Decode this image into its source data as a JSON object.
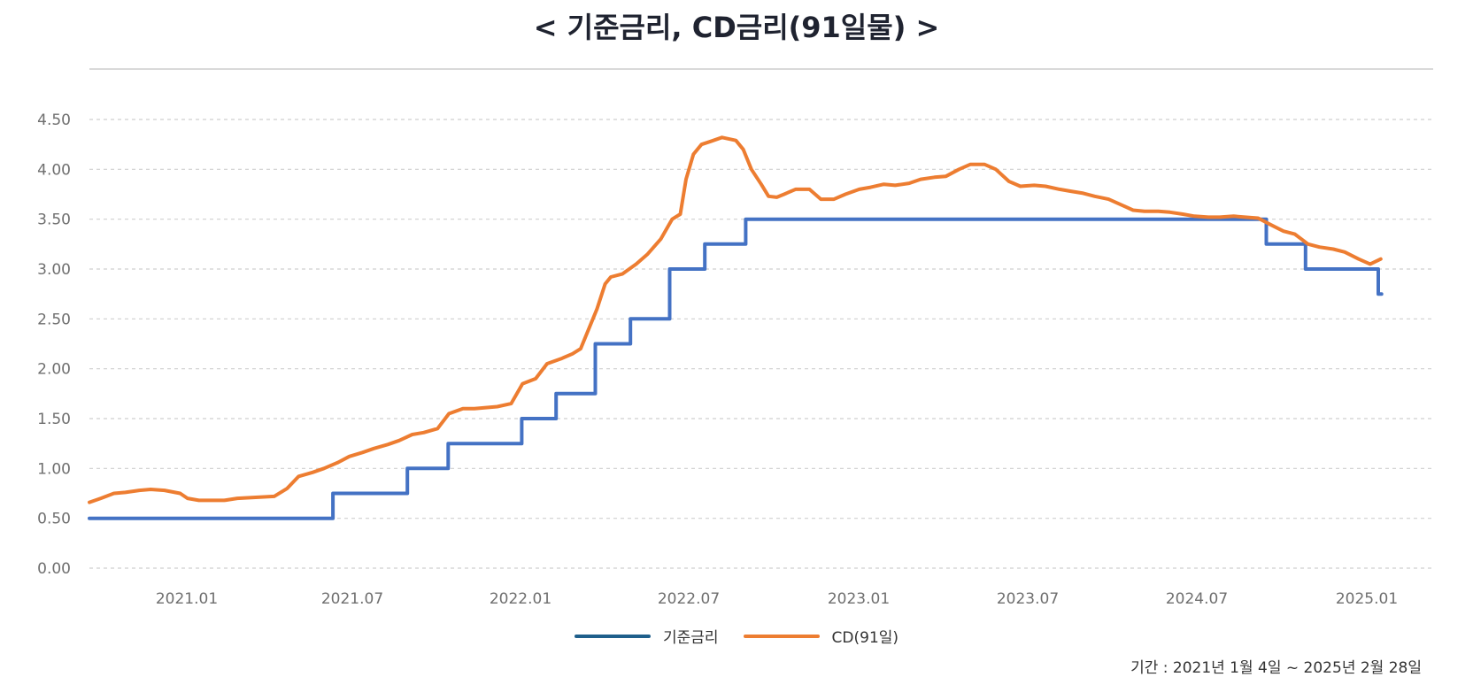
{
  "chart_data": {
    "type": "line",
    "title": "< 기준금리, CD금리(91일물) >",
    "x_ticks": [
      "2021.01",
      "2021.07",
      "2022.01",
      "2022.07",
      "2023.01",
      "2023.07",
      "2024.07",
      "2025.01"
    ],
    "y_ticks": [
      "0.00",
      "0.50",
      "1.00",
      "1.50",
      "2.00",
      "2.50",
      "3.00",
      "3.50",
      "4.00",
      "4.50"
    ],
    "ylim": [
      0,
      4.5
    ],
    "grid": "horizontal-dashed",
    "legend_position": "bottom-center",
    "footnote": "기간 : 2021년 1월 4일 ~ 2025년 2월 28일",
    "series": [
      {
        "name": "기준금리",
        "color": "#4472c4",
        "step": true,
        "points": [
          [
            "2020-11-01",
            0.5
          ],
          [
            "2021-08-26",
            0.75
          ],
          [
            "2021-11-25",
            1.0
          ],
          [
            "2022-01-14",
            1.25
          ],
          [
            "2022-04-14",
            1.5
          ],
          [
            "2022-05-26",
            1.75
          ],
          [
            "2022-07-13",
            2.25
          ],
          [
            "2022-08-25",
            2.5
          ],
          [
            "2022-10-12",
            3.0
          ],
          [
            "2022-11-24",
            3.25
          ],
          [
            "2023-01-13",
            3.5
          ],
          [
            "2024-10-11",
            3.25
          ],
          [
            "2024-11-28",
            3.0
          ],
          [
            "2025-02-25",
            2.75
          ]
        ]
      },
      {
        "name": "CD(91일)",
        "color": "#ed7d31",
        "points": [
          [
            "2020-11-01",
            0.66
          ],
          [
            "2020-11-15",
            0.7
          ],
          [
            "2020-12-01",
            0.75
          ],
          [
            "2020-12-15",
            0.76
          ],
          [
            "2021-01-01",
            0.78
          ],
          [
            "2021-01-15",
            0.79
          ],
          [
            "2021-02-01",
            0.78
          ],
          [
            "2021-02-20",
            0.75
          ],
          [
            "2021-03-01",
            0.7
          ],
          [
            "2021-03-15",
            0.68
          ],
          [
            "2021-04-15",
            0.68
          ],
          [
            "2021-05-01",
            0.7
          ],
          [
            "2021-06-15",
            0.72
          ],
          [
            "2021-07-01",
            0.8
          ],
          [
            "2021-07-15",
            0.92
          ],
          [
            "2021-08-01",
            0.96
          ],
          [
            "2021-08-15",
            1.0
          ],
          [
            "2021-09-01",
            1.06
          ],
          [
            "2021-09-15",
            1.12
          ],
          [
            "2021-10-01",
            1.16
          ],
          [
            "2021-10-15",
            1.2
          ],
          [
            "2021-11-01",
            1.24
          ],
          [
            "2021-11-15",
            1.28
          ],
          [
            "2021-12-01",
            1.34
          ],
          [
            "2021-12-15",
            1.36
          ],
          [
            "2022-01-01",
            1.4
          ],
          [
            "2022-01-15",
            1.55
          ],
          [
            "2022-02-01",
            1.6
          ],
          [
            "2022-02-15",
            1.6
          ],
          [
            "2022-03-15",
            1.62
          ],
          [
            "2022-04-01",
            1.65
          ],
          [
            "2022-04-15",
            1.85
          ],
          [
            "2022-05-01",
            1.9
          ],
          [
            "2022-05-15",
            2.05
          ],
          [
            "2022-06-01",
            2.1
          ],
          [
            "2022-06-15",
            2.15
          ],
          [
            "2022-06-25",
            2.2
          ],
          [
            "2022-07-15",
            2.6
          ],
          [
            "2022-07-25",
            2.85
          ],
          [
            "2022-08-01",
            2.92
          ],
          [
            "2022-08-15",
            2.95
          ],
          [
            "2022-09-01",
            3.05
          ],
          [
            "2022-09-15",
            3.15
          ],
          [
            "2022-10-01",
            3.3
          ],
          [
            "2022-10-15",
            3.5
          ],
          [
            "2022-10-25",
            3.55
          ],
          [
            "2022-11-01",
            3.9
          ],
          [
            "2022-11-10",
            4.15
          ],
          [
            "2022-11-20",
            4.25
          ],
          [
            "2022-12-01",
            4.28
          ],
          [
            "2022-12-15",
            4.32
          ],
          [
            "2023-01-01",
            4.29
          ],
          [
            "2023-01-05",
            4.25
          ],
          [
            "2023-01-10",
            4.2
          ],
          [
            "2023-01-20",
            4.0
          ],
          [
            "2023-02-01",
            3.85
          ],
          [
            "2023-02-10",
            3.73
          ],
          [
            "2023-02-20",
            3.72
          ],
          [
            "2023-03-01",
            3.75
          ],
          [
            "2023-03-15",
            3.8
          ],
          [
            "2023-04-01",
            3.8
          ],
          [
            "2023-04-15",
            3.7
          ],
          [
            "2023-05-01",
            3.7
          ],
          [
            "2023-05-15",
            3.75
          ],
          [
            "2023-06-01",
            3.8
          ],
          [
            "2023-06-15",
            3.82
          ],
          [
            "2023-07-01",
            3.85
          ],
          [
            "2023-07-15",
            3.84
          ],
          [
            "2023-08-01",
            3.86
          ],
          [
            "2023-08-15",
            3.9
          ],
          [
            "2023-09-01",
            3.92
          ],
          [
            "2023-09-15",
            3.93
          ],
          [
            "2023-10-01",
            4.0
          ],
          [
            "2023-10-15",
            4.05
          ],
          [
            "2023-11-01",
            4.05
          ],
          [
            "2023-11-15",
            4.0
          ],
          [
            "2023-12-01",
            3.88
          ],
          [
            "2023-12-15",
            3.83
          ],
          [
            "2024-01-01",
            3.84
          ],
          [
            "2024-01-15",
            3.83
          ],
          [
            "2024-02-01",
            3.8
          ],
          [
            "2024-02-15",
            3.78
          ],
          [
            "2024-03-01",
            3.76
          ],
          [
            "2024-03-15",
            3.73
          ],
          [
            "2024-04-01",
            3.7
          ],
          [
            "2024-04-15",
            3.65
          ],
          [
            "2024-05-01",
            3.59
          ],
          [
            "2024-05-15",
            3.58
          ],
          [
            "2024-06-01",
            3.58
          ],
          [
            "2024-06-15",
            3.57
          ],
          [
            "2024-07-01",
            3.55
          ],
          [
            "2024-07-15",
            3.53
          ],
          [
            "2024-08-01",
            3.52
          ],
          [
            "2024-08-15",
            3.52
          ],
          [
            "2024-09-01",
            3.53
          ],
          [
            "2024-09-15",
            3.52
          ],
          [
            "2024-10-01",
            3.51
          ],
          [
            "2024-10-15",
            3.45
          ],
          [
            "2024-11-01",
            3.38
          ],
          [
            "2024-11-15",
            3.35
          ],
          [
            "2024-12-01",
            3.25
          ],
          [
            "2024-12-15",
            3.22
          ],
          [
            "2025-01-01",
            3.2
          ],
          [
            "2025-01-15",
            3.17
          ],
          [
            "2025-02-01",
            3.1
          ],
          [
            "2025-02-15",
            3.05
          ],
          [
            "2025-02-28",
            3.1
          ]
        ]
      }
    ]
  }
}
